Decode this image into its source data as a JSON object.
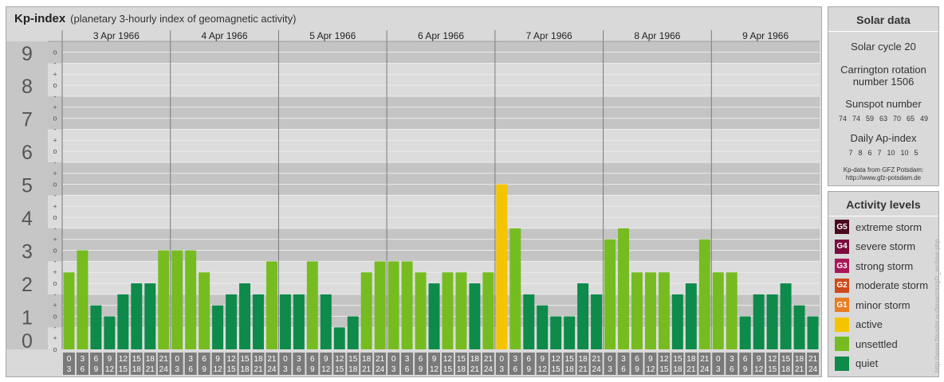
{
  "header": {
    "title": "Kp-index",
    "subtitle": "(planetary 3-hourly index of geomagnetic activity)"
  },
  "chart_data": {
    "type": "bar",
    "title": "Kp-index",
    "subtitle": "(planetary 3-hourly index of geomagnetic activity)",
    "y_ticks": [
      "0",
      "1",
      "2",
      "3",
      "4",
      "5",
      "6",
      "7",
      "8",
      "9"
    ],
    "sub_ticks": [
      "-",
      "o",
      "+"
    ],
    "ylim": [
      0,
      9.33
    ],
    "days": [
      "3 Apr 1966",
      "4 Apr 1966",
      "5 Apr 1966",
      "6 Apr 1966",
      "7 Apr 1966",
      "8 Apr 1966",
      "9 Apr 1966"
    ],
    "slot_labels": [
      [
        "0",
        "3"
      ],
      [
        "3",
        "6"
      ],
      [
        "6",
        "9"
      ],
      [
        "9",
        "12"
      ],
      [
        "12",
        "15"
      ],
      [
        "15",
        "18"
      ],
      [
        "18",
        "21"
      ],
      [
        "21",
        "24"
      ]
    ],
    "values": [
      [
        2.0,
        2.667,
        1.0,
        0.667,
        1.333,
        1.667,
        1.667,
        2.667
      ],
      [
        2.667,
        2.667,
        2.0,
        1.0,
        1.333,
        1.667,
        1.333,
        2.333
      ],
      [
        1.333,
        1.333,
        2.333,
        1.333,
        0.333,
        0.667,
        2.0,
        2.333
      ],
      [
        2.333,
        2.333,
        2.0,
        1.667,
        2.0,
        2.0,
        1.667,
        2.0
      ],
      [
        4.667,
        3.333,
        1.333,
        1.0,
        0.667,
        0.667,
        1.667,
        1.333
      ],
      [
        3.0,
        3.333,
        2.0,
        2.0,
        2.0,
        1.333,
        1.667,
        3.0
      ],
      [
        2.0,
        2.0,
        0.667,
        1.333,
        1.333,
        1.667,
        1.0,
        0.667
      ]
    ],
    "colors": {
      "quiet": "#0e8a4a",
      "unsettled": "#76bc21",
      "active": "#f5c400",
      "G1": "#e67e22",
      "G2": "#cc4b1b",
      "G3": "#a8175a",
      "G4": "#7a0b3c",
      "G5": "#4a0a1e"
    }
  },
  "solar": {
    "title": "Solar data",
    "cycle": "Solar cycle 20",
    "carrington_line1": "Carrington rotation",
    "carrington_line2": "number 1506",
    "sunspot_title": "Sunspot number",
    "sunspot_values": "74  74  59  63  70  65  49",
    "ap_title": "Daily Ap-index",
    "ap_values": "7  8  6  7  10  10  5",
    "credit_line1": "Kp-data from GFZ Potsdam:",
    "credit_line2": "http://www.gfz-potsdam.de"
  },
  "activity": {
    "title": "Activity levels",
    "items": [
      {
        "badge": "G5",
        "label": "extreme storm",
        "color": "#4a0a1e"
      },
      {
        "badge": "G4",
        "label": "severe storm",
        "color": "#7a0b3c"
      },
      {
        "badge": "G3",
        "label": "strong storm",
        "color": "#a8175a"
      },
      {
        "badge": "G2",
        "label": "moderate storm",
        "color": "#cc4b1b"
      },
      {
        "badge": "G1",
        "label": "minor storm",
        "color": "#e67e22"
      },
      {
        "badge": "",
        "label": "active",
        "color": "#f5c400"
      },
      {
        "badge": "",
        "label": "unsettled",
        "color": "#76bc21"
      },
      {
        "badge": "",
        "label": "quiet",
        "color": "#0e8a4a"
      }
    ]
  },
  "watermark": "http://www.fleuster.eu/ferianzm/gfz_archive.php"
}
